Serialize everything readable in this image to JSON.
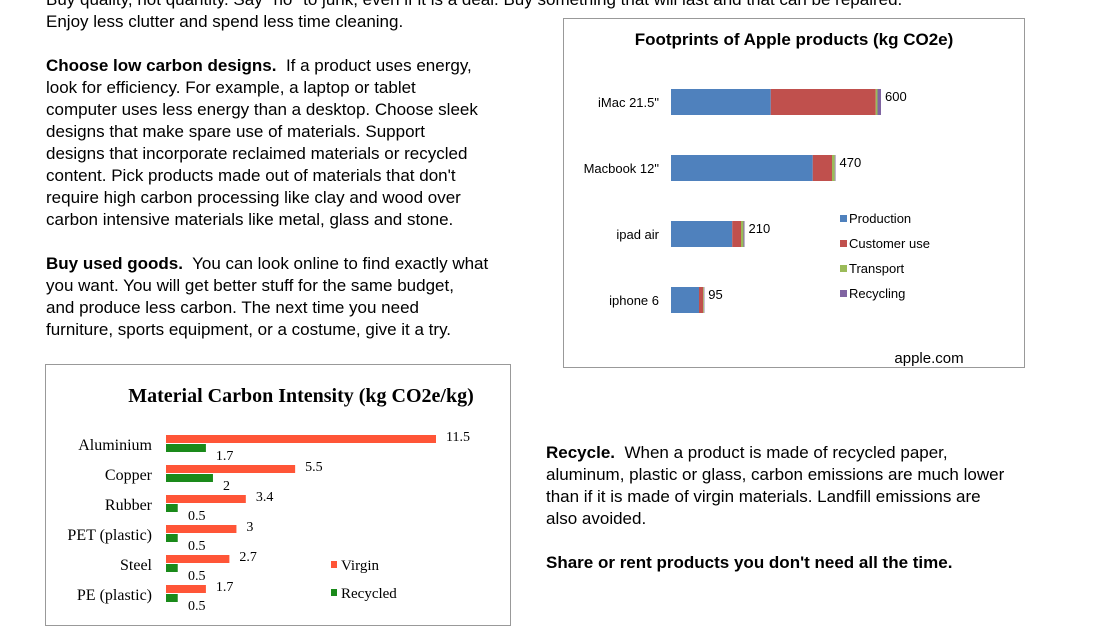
{
  "top_line_partial": "Buy quality, not quantity.  Say \"no\" to junk, even if it is a deal.  Buy something that will last and that can be repaired.",
  "top_line2": "Enjoy less clutter and spend less time cleaning.",
  "para_low_carbon": {
    "heading": "Choose low carbon designs.",
    "lines": [
      "If a product uses energy,",
      "look for efficiency.  For example, a laptop or tablet",
      "computer uses less energy than a desktop.  Choose sleek",
      "designs that make spare use of materials.  Support",
      "designs that incorporate reclaimed materials or recycled",
      "content.  Pick products made out of materials that don't",
      "require high carbon processing like clay and wood over",
      "carbon intensive materials like metal, glass and stone."
    ]
  },
  "para_used": {
    "heading": "Buy used goods.",
    "lines": [
      "You can look online to find exactly what",
      "you want.  You will get better stuff for the same budget,",
      "and produce less carbon.  The next time you need",
      "furniture, sports equipment, or a costume, give it a try."
    ]
  },
  "para_recycle": {
    "heading": "Recycle.",
    "lines": [
      "When a product is made of recycled paper,",
      "aluminum, plastic or glass, carbon emissions are much lower",
      "than if it is made of virgin materials.  Landfill emissions are",
      "also avoided."
    ]
  },
  "para_share": {
    "heading": "Share or rent products you don't need all the time."
  },
  "colors": {
    "production": "#4F81BD",
    "customer_use": "#C0504D",
    "transport": "#9BBB59",
    "recycling": "#8064A2",
    "virgin": "#FF5537",
    "recycled": "#1A8A1A"
  },
  "chart_data": [
    {
      "type": "bar",
      "orientation": "horizontal",
      "stacked": true,
      "title": "Footprints of Apple products (kg CO2e)",
      "source": "apple.com",
      "categories": [
        "iMac 21.5\"",
        "Macbook 12\"",
        "ipad air",
        "iphone 6"
      ],
      "totals": [
        600,
        470,
        210,
        95
      ],
      "series": [
        {
          "name": "Production",
          "values": [
            285,
            405,
            175,
            80
          ]
        },
        {
          "name": "Customer use",
          "values": [
            300,
            55,
            25,
            12
          ]
        },
        {
          "name": "Transport",
          "values": [
            5,
            8,
            7,
            2
          ]
        },
        {
          "name": "Recycling",
          "values": [
            10,
            2,
            3,
            1
          ]
        }
      ],
      "xlim": [
        0,
        600
      ],
      "legend": "right"
    },
    {
      "type": "bar",
      "orientation": "horizontal",
      "stacked": false,
      "title": "Material Carbon Intensity (kg CO2e/kg)",
      "categories": [
        "Aluminium",
        "Copper",
        "Rubber",
        "PET (plastic)",
        "Steel",
        "PE (plastic)"
      ],
      "series": [
        {
          "name": "Virgin",
          "values": [
            11.5,
            5.5,
            3.4,
            3,
            2.7,
            1.7
          ]
        },
        {
          "name": "Recycled",
          "values": [
            1.7,
            2,
            0.5,
            0.5,
            0.5,
            0.5
          ]
        }
      ],
      "xlim": [
        0,
        12
      ],
      "legend": "right"
    }
  ]
}
